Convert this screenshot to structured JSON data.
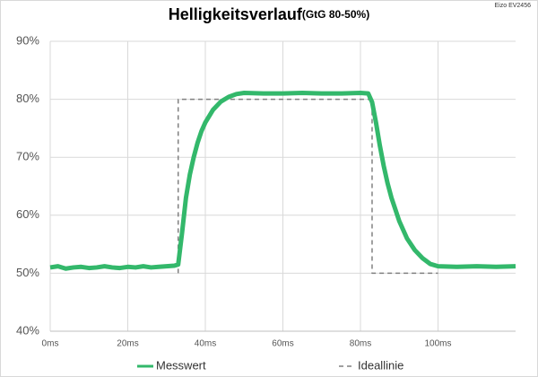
{
  "chart_data": {
    "type": "line",
    "title": "Helligkeitsverlauf",
    "subtitle": "(GtG 80-50%)",
    "annotation": "Eizo EV2456",
    "xlim": [
      0,
      120
    ],
    "xticks": [
      {
        "value": 0,
        "label": "0ms"
      },
      {
        "value": 20,
        "label": "20ms"
      },
      {
        "value": 40,
        "label": "40ms"
      },
      {
        "value": 60,
        "label": "60ms"
      },
      {
        "value": 80,
        "label": "80ms"
      },
      {
        "value": 100,
        "label": "100ms"
      }
    ],
    "ylim": [
      40,
      90
    ],
    "yticks": [
      {
        "value": 40,
        "label": "40%"
      },
      {
        "value": 50,
        "label": "50%"
      },
      {
        "value": 60,
        "label": "60%"
      },
      {
        "value": 70,
        "label": "70%"
      },
      {
        "value": 80,
        "label": "80%"
      },
      {
        "value": 90,
        "label": "90%"
      }
    ],
    "grid": true,
    "legend": "bottom",
    "series": [
      {
        "name": "Messwert",
        "color": "#33b86b",
        "dash": false,
        "x": [
          0,
          2,
          4,
          6,
          8,
          10,
          12,
          14,
          16,
          18,
          20,
          22,
          24,
          26,
          28,
          30,
          32,
          33,
          34,
          35,
          36,
          37,
          38,
          39,
          40,
          42,
          44,
          46,
          48,
          50,
          55,
          60,
          65,
          70,
          75,
          80,
          82,
          83,
          84,
          85,
          86,
          87,
          88,
          89,
          90,
          92,
          94,
          96,
          98,
          100,
          105,
          110,
          115,
          120
        ],
        "values": [
          51,
          51.2,
          50.8,
          51,
          51.1,
          50.9,
          51,
          51.2,
          51,
          50.9,
          51.1,
          51,
          51.2,
          51,
          51.1,
          51.2,
          51.3,
          51.5,
          57,
          63,
          67,
          70,
          72.5,
          74.5,
          76,
          78.2,
          79.6,
          80.4,
          80.9,
          81.1,
          81,
          81,
          81.1,
          81,
          81,
          81.1,
          81,
          79.5,
          76,
          72,
          68.5,
          65.5,
          63,
          61,
          59,
          56,
          54,
          52.6,
          51.6,
          51.2,
          51.1,
          51.2,
          51.1,
          51.2
        ]
      },
      {
        "name": "Ideallinie",
        "color": "#808080",
        "dash": true,
        "x": [
          33,
          33,
          83,
          83,
          100
        ],
        "values": [
          50,
          80,
          80,
          50,
          50
        ]
      }
    ]
  }
}
